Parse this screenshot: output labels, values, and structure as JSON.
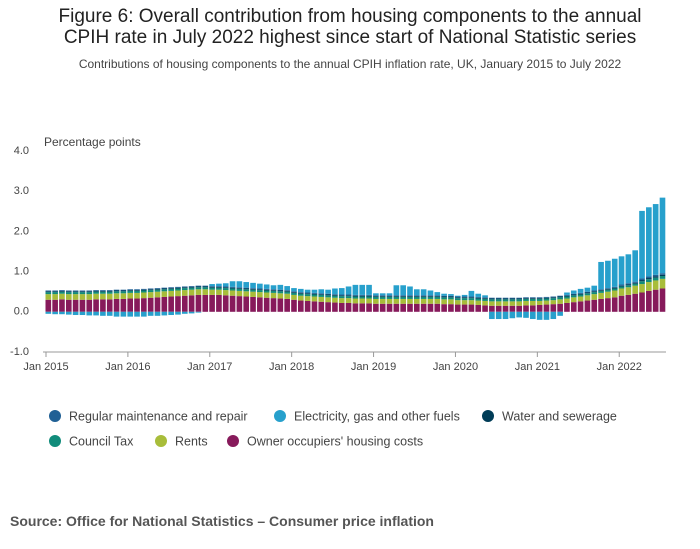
{
  "chart_data": {
    "type": "stacked-bar",
    "title": "Figure 6: Overall contribution from housing components to the annual CPIH rate in July 2022 highest since start of National Statistic series",
    "subtitle": "Contributions of housing components to the annual CPIH inflation rate, UK, January 2015 to July 2022",
    "y_label": "Percentage points",
    "source": "Source: Office for National Statistics – Consumer price inflation",
    "categories": [
      "Jan 2015",
      null,
      null,
      null,
      null,
      null,
      null,
      null,
      null,
      null,
      null,
      null,
      "Jan 2016",
      null,
      null,
      null,
      null,
      null,
      null,
      null,
      null,
      null,
      null,
      null,
      "Jan 2017",
      null,
      null,
      null,
      null,
      null,
      null,
      null,
      null,
      null,
      null,
      null,
      "Jan 2018",
      null,
      null,
      null,
      null,
      null,
      null,
      null,
      null,
      null,
      null,
      null,
      "Jan 2019",
      null,
      null,
      null,
      null,
      null,
      null,
      null,
      null,
      null,
      null,
      null,
      "Jan 2020",
      null,
      null,
      null,
      null,
      null,
      null,
      null,
      null,
      null,
      null,
      null,
      "Jan 2021",
      null,
      null,
      null,
      null,
      null,
      null,
      null,
      null,
      null,
      null,
      null,
      "Jan 2022",
      null,
      null,
      null,
      null,
      null,
      null
    ],
    "ylim": [
      -1,
      4
    ],
    "yticks": [
      {
        "value": 4,
        "label": "4.0"
      },
      {
        "value": 3,
        "label": "3.0"
      },
      {
        "value": 2,
        "label": "2.0"
      },
      {
        "value": 1,
        "label": "1.0"
      },
      {
        "value": 0,
        "label": "0.0"
      },
      {
        "value": -1,
        "label": "-1.0"
      }
    ],
    "grid": false,
    "series": [
      {
        "name": "Regular maintenance and repair",
        "color": "#206095",
        "values": [
          0.02,
          0.02,
          0.02,
          0.02,
          0.02,
          0.02,
          0.02,
          0.02,
          0.02,
          0.02,
          0.02,
          0.02,
          0.02,
          0.02,
          0.02,
          0.02,
          0.02,
          0.02,
          0.02,
          0.02,
          0.02,
          0.02,
          0.02,
          0.02,
          0.02,
          0.02,
          0.02,
          0.02,
          0.02,
          0.02,
          0.02,
          0.02,
          0.02,
          0.02,
          0.02,
          0.02,
          0.02,
          0.02,
          0.02,
          0.02,
          0.02,
          0.02,
          0.02,
          0.02,
          0.02,
          0.02,
          0.02,
          0.02,
          0.02,
          0.02,
          0.02,
          0.02,
          0.02,
          0.02,
          0.02,
          0.02,
          0.02,
          0.02,
          0.02,
          0.02,
          0.02,
          0.02,
          0.02,
          0.02,
          0.02,
          0.02,
          0.02,
          0.02,
          0.02,
          0.02,
          0.02,
          0.02,
          0.02,
          0.02,
          0.02,
          0.02,
          0.02,
          0.02,
          0.02,
          0.02,
          0.02,
          0.02,
          0.02,
          0.02,
          0.03,
          0.03,
          0.03,
          0.04,
          0.04,
          0.04,
          0.04
        ]
      },
      {
        "name": "Electricity, gas and other fuels",
        "color": "#27a0cc",
        "values": [
          -0.05,
          -0.06,
          -0.06,
          -0.07,
          -0.08,
          -0.08,
          -0.09,
          -0.09,
          -0.1,
          -0.1,
          -0.12,
          -0.12,
          -0.12,
          -0.12,
          -0.12,
          -0.1,
          -0.1,
          -0.09,
          -0.08,
          -0.07,
          -0.05,
          -0.04,
          -0.02,
          0,
          0.05,
          0.06,
          0.08,
          0.14,
          0.15,
          0.14,
          0.13,
          0.12,
          0.11,
          0.1,
          0.12,
          0.1,
          0.08,
          0.08,
          0.07,
          0.08,
          0.1,
          0.1,
          0.14,
          0.16,
          0.2,
          0.25,
          0.25,
          0.25,
          0.05,
          0.05,
          0.05,
          0.25,
          0.25,
          0.22,
          0.15,
          0.15,
          0.12,
          0.08,
          0.05,
          0.04,
          0.02,
          0.04,
          0.14,
          0.08,
          0.05,
          -0.18,
          -0.18,
          -0.18,
          -0.16,
          -0.14,
          -0.15,
          -0.18,
          -0.2,
          -0.2,
          -0.18,
          -0.1,
          0.06,
          0.08,
          0.1,
          0.1,
          0.12,
          0.68,
          0.68,
          0.7,
          0.7,
          0.72,
          0.78,
          1.68,
          1.72,
          1.76,
          1.88
        ]
      },
      {
        "name": "Water and sewerage",
        "color": "#003c57",
        "values": [
          0.02,
          0.02,
          0.02,
          0.02,
          0.02,
          0.02,
          0.02,
          0.02,
          0.02,
          0.02,
          0.02,
          0.02,
          0.02,
          0.02,
          0.02,
          0.02,
          0.02,
          0.02,
          0.02,
          0.02,
          0.02,
          0.02,
          0.02,
          0.02,
          0.02,
          0.02,
          0.02,
          0.02,
          0.02,
          0.02,
          0.02,
          0.02,
          0.02,
          0.02,
          0.02,
          0.02,
          0.02,
          0.02,
          0.02,
          0.02,
          0.02,
          0.02,
          0.02,
          0.02,
          0.02,
          0.02,
          0.02,
          0.02,
          0.02,
          0.02,
          0.02,
          0.02,
          0.02,
          0.02,
          0.02,
          0.02,
          0.02,
          0.02,
          0.02,
          0.02,
          0.02,
          0.02,
          0.02,
          0.02,
          0.02,
          0.02,
          0.02,
          0.02,
          0.02,
          0.02,
          0.02,
          0.02,
          0.02,
          0.02,
          0.02,
          0.02,
          0.02,
          0.02,
          0.02,
          0.02,
          0.02,
          0.02,
          0.02,
          0.02,
          0.02,
          0.02,
          0.02,
          0.03,
          0.03,
          0.03,
          0.03
        ]
      },
      {
        "name": "Council Tax",
        "color": "#118c7b",
        "values": [
          0.05,
          0.05,
          0.05,
          0.05,
          0.05,
          0.05,
          0.05,
          0.05,
          0.05,
          0.05,
          0.05,
          0.05,
          0.05,
          0.05,
          0.05,
          0.05,
          0.05,
          0.05,
          0.05,
          0.05,
          0.05,
          0.05,
          0.05,
          0.05,
          0.05,
          0.05,
          0.05,
          0.05,
          0.05,
          0.05,
          0.05,
          0.05,
          0.05,
          0.05,
          0.05,
          0.05,
          0.05,
          0.05,
          0.05,
          0.05,
          0.05,
          0.05,
          0.05,
          0.05,
          0.05,
          0.05,
          0.05,
          0.05,
          0.05,
          0.05,
          0.05,
          0.05,
          0.05,
          0.05,
          0.05,
          0.05,
          0.05,
          0.05,
          0.05,
          0.05,
          0.05,
          0.05,
          0.05,
          0.05,
          0.05,
          0.05,
          0.05,
          0.05,
          0.05,
          0.05,
          0.05,
          0.05,
          0.05,
          0.05,
          0.05,
          0.05,
          0.05,
          0.05,
          0.05,
          0.05,
          0.05,
          0.05,
          0.05,
          0.05,
          0.05,
          0.05,
          0.05,
          0.07,
          0.07,
          0.07,
          0.07
        ]
      },
      {
        "name": "Rents",
        "color": "#a8bd3a",
        "values": [
          0.14,
          0.14,
          0.14,
          0.14,
          0.14,
          0.14,
          0.14,
          0.14,
          0.14,
          0.14,
          0.14,
          0.14,
          0.14,
          0.14,
          0.14,
          0.14,
          0.14,
          0.14,
          0.14,
          0.14,
          0.14,
          0.14,
          0.14,
          0.14,
          0.13,
          0.13,
          0.13,
          0.13,
          0.13,
          0.13,
          0.13,
          0.13,
          0.13,
          0.13,
          0.13,
          0.13,
          0.12,
          0.12,
          0.12,
          0.12,
          0.12,
          0.12,
          0.12,
          0.12,
          0.12,
          0.12,
          0.12,
          0.12,
          0.12,
          0.12,
          0.12,
          0.12,
          0.12,
          0.12,
          0.12,
          0.12,
          0.12,
          0.12,
          0.12,
          0.12,
          0.11,
          0.11,
          0.11,
          0.11,
          0.11,
          0.11,
          0.11,
          0.11,
          0.11,
          0.11,
          0.11,
          0.11,
          0.1,
          0.1,
          0.1,
          0.11,
          0.11,
          0.12,
          0.12,
          0.13,
          0.14,
          0.15,
          0.16,
          0.17,
          0.18,
          0.19,
          0.2,
          0.21,
          0.22,
          0.23,
          0.24
        ]
      },
      {
        "name": "Owner occupiers' housing costs",
        "color": "#871a5b",
        "values": [
          0.3,
          0.3,
          0.31,
          0.3,
          0.3,
          0.3,
          0.3,
          0.31,
          0.31,
          0.31,
          0.32,
          0.32,
          0.33,
          0.33,
          0.34,
          0.35,
          0.36,
          0.37,
          0.38,
          0.39,
          0.4,
          0.41,
          0.42,
          0.42,
          0.42,
          0.42,
          0.41,
          0.4,
          0.39,
          0.38,
          0.37,
          0.36,
          0.35,
          0.34,
          0.33,
          0.32,
          0.3,
          0.28,
          0.27,
          0.26,
          0.25,
          0.24,
          0.23,
          0.22,
          0.22,
          0.21,
          0.21,
          0.21,
          0.2,
          0.2,
          0.2,
          0.2,
          0.2,
          0.2,
          0.2,
          0.2,
          0.2,
          0.2,
          0.19,
          0.19,
          0.18,
          0.18,
          0.18,
          0.17,
          0.16,
          0.15,
          0.15,
          0.15,
          0.15,
          0.15,
          0.16,
          0.16,
          0.17,
          0.18,
          0.19,
          0.2,
          0.22,
          0.24,
          0.26,
          0.28,
          0.3,
          0.32,
          0.34,
          0.36,
          0.4,
          0.42,
          0.45,
          0.48,
          0.52,
          0.55,
          0.58
        ]
      }
    ]
  }
}
